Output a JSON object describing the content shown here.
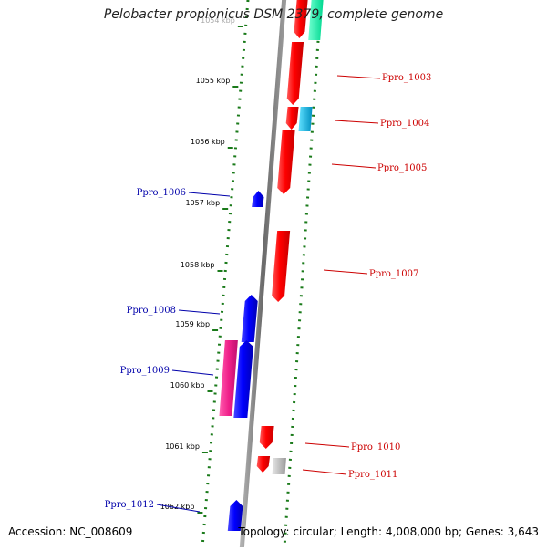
{
  "title": "Pelobacter propionicus DSM 2379, complete genome",
  "footer": {
    "accession": "Accession: NC_008609",
    "summary": "Topology: circular; Length: 4,008,000 bp; Genes: 3,643"
  },
  "colors": {
    "forward_gene": "#ff0000",
    "reverse_gene": "#0000ff",
    "forward_label": "#cc0000",
    "reverse_label": "#0000aa",
    "track_dots": "#1a7a1a",
    "axis": "#808080"
  },
  "ticks": [
    {
      "label": "1054 kbp",
      "faded": true
    },
    {
      "label": "1055 kbp"
    },
    {
      "label": "1056 kbp"
    },
    {
      "label": "1057 kbp"
    },
    {
      "label": "1058 kbp"
    },
    {
      "label": "1059 kbp"
    },
    {
      "label": "1060 kbp"
    },
    {
      "label": "1061 kbp"
    },
    {
      "label": "1062 kbp"
    }
  ],
  "gene_labels": [
    {
      "name": "Ppro_1003",
      "strand": "forward"
    },
    {
      "name": "Ppro_1004",
      "strand": "forward"
    },
    {
      "name": "Ppro_1005",
      "strand": "forward"
    },
    {
      "name": "Ppro_1006",
      "strand": "reverse"
    },
    {
      "name": "Ppro_1007",
      "strand": "forward"
    },
    {
      "name": "Ppro_1008",
      "strand": "reverse"
    },
    {
      "name": "Ppro_1009",
      "strand": "reverse"
    },
    {
      "name": "Ppro_1010",
      "strand": "forward"
    },
    {
      "name": "Ppro_1011",
      "strand": "forward"
    },
    {
      "name": "Ppro_1012",
      "strand": "reverse"
    }
  ]
}
